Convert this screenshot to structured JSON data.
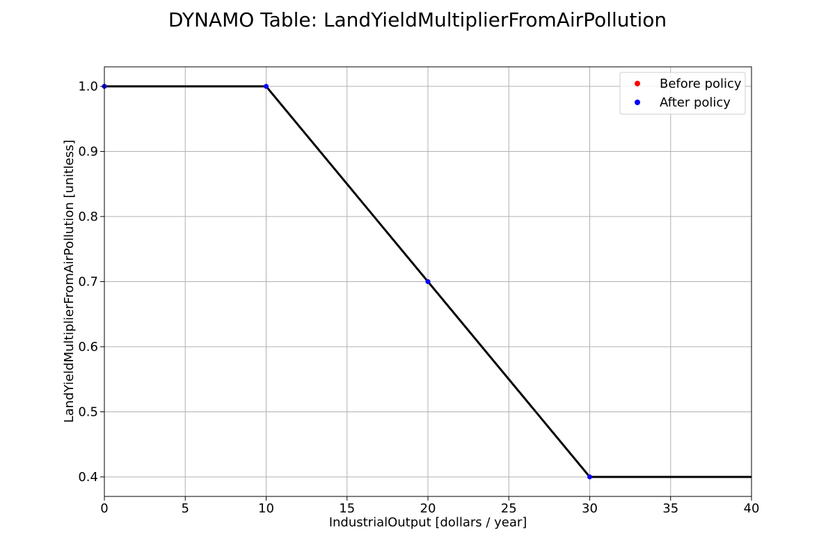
{
  "chart_data": {
    "type": "line",
    "title": "DYNAMO Table: LandYieldMultiplierFromAirPollution",
    "xlabel": "IndustrialOutput [dollars / year]",
    "ylabel": "LandYieldMultiplierFromAirPollution [unitless]",
    "xlim": [
      0,
      40
    ],
    "ylim": [
      0.37,
      1.03
    ],
    "xticks": [
      0,
      5,
      10,
      15,
      20,
      25,
      30,
      35,
      40
    ],
    "yticks": [
      0.4,
      0.5,
      0.6,
      0.7,
      0.8,
      0.9,
      1.0
    ],
    "xtick_labels": [
      "0",
      "5",
      "10",
      "15",
      "20",
      "25",
      "30",
      "35",
      "40"
    ],
    "ytick_labels": [
      "0.4",
      "0.5",
      "0.6",
      "0.7",
      "0.8",
      "0.9",
      "1.0"
    ],
    "grid": true,
    "legend_position": "top-right",
    "line": {
      "x": [
        0,
        10,
        20,
        30,
        40
      ],
      "y": [
        1.0,
        1.0,
        0.7,
        0.4,
        0.4
      ],
      "color": "#000000"
    },
    "series": [
      {
        "name": "Before policy",
        "color": "#ff0000",
        "x": [
          0,
          10,
          20,
          30
        ],
        "y": [
          1.0,
          1.0,
          0.7,
          0.4
        ]
      },
      {
        "name": "After policy",
        "color": "#0000ff",
        "x": [
          0,
          10,
          20,
          30
        ],
        "y": [
          1.0,
          1.0,
          0.7,
          0.4
        ]
      }
    ]
  }
}
